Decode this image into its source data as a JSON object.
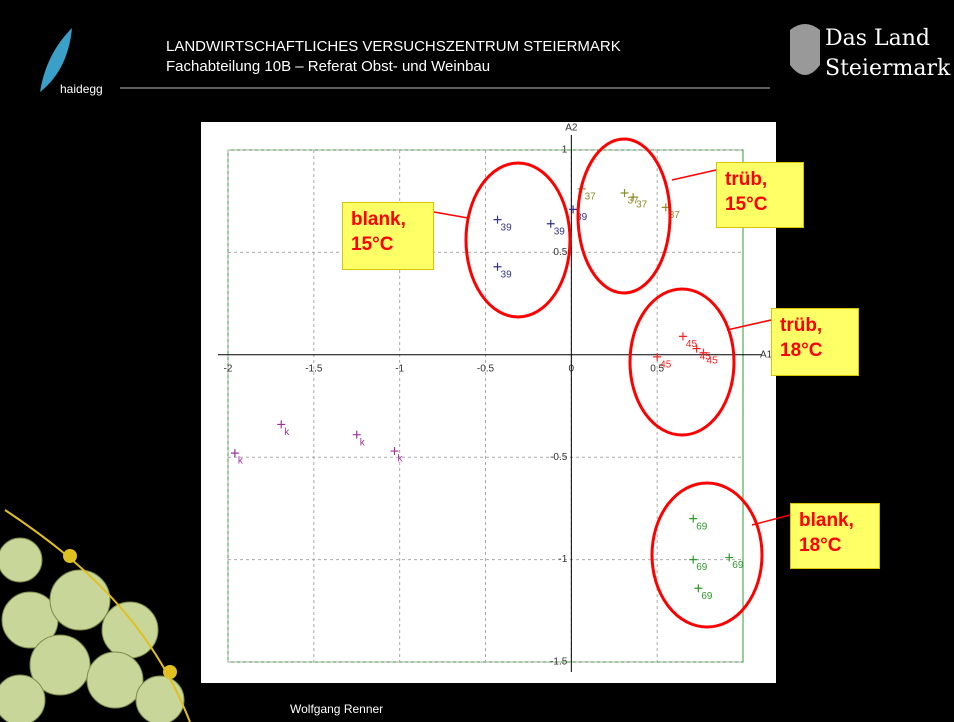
{
  "header": {
    "title": "LANDWIRTSCHAFTLICHES VERSUCHSZENTRUM STEIERMARK",
    "subtitle": "Fachabteilung 10B – Referat Obst- und Weinbau",
    "logo_left": "haidegg",
    "logo_right": [
      "Das Land",
      "Steiermark"
    ]
  },
  "footer": "Wolfgang Renner",
  "chart_data": {
    "type": "scatter",
    "x_label": "A1",
    "y_label": "A2",
    "xlim": [
      -2,
      1
    ],
    "ylim": [
      -1.5,
      1
    ],
    "xticks": [
      -2,
      -1.5,
      -1,
      -0.5,
      0,
      0.5
    ],
    "yticks": [
      -1.5,
      -1,
      -0.5,
      0.5,
      1
    ],
    "grid": true,
    "series": [
      {
        "name": "39",
        "color": "#33338a",
        "x": [
          -0.43,
          -0.12,
          -0.43,
          0.01
        ],
        "values": [
          0.66,
          0.64,
          0.43,
          0.71
        ]
      },
      {
        "name": "37",
        "color": "#8c8c2a",
        "x": [
          0.06,
          0.31,
          0.36,
          0.55
        ],
        "values": [
          0.81,
          0.79,
          0.77,
          0.72
        ]
      },
      {
        "name": "45",
        "color": "#ff2020",
        "x": [
          0.65,
          0.73,
          0.77,
          0.5
        ],
        "values": [
          0.09,
          0.03,
          0.01,
          -0.01
        ]
      },
      {
        "name": "69",
        "color": "#2e9a2e",
        "x": [
          0.71,
          0.71,
          0.92,
          0.74
        ],
        "values": [
          -0.8,
          -1.0,
          -0.99,
          -1.14
        ]
      },
      {
        "name": "k",
        "color": "#a030a0",
        "x": [
          -1.96,
          -1.69,
          -1.25,
          -1.03
        ],
        "values": [
          -0.48,
          -0.34,
          -0.39,
          -0.47
        ]
      }
    ],
    "annotations": [
      {
        "lines": [
          "blank,",
          "15°C"
        ]
      },
      {
        "lines": [
          "trüb,",
          "15°C"
        ]
      },
      {
        "lines": [
          "trüb,",
          "18°C"
        ]
      },
      {
        "lines": [
          "blank,",
          "18°C"
        ]
      }
    ]
  }
}
